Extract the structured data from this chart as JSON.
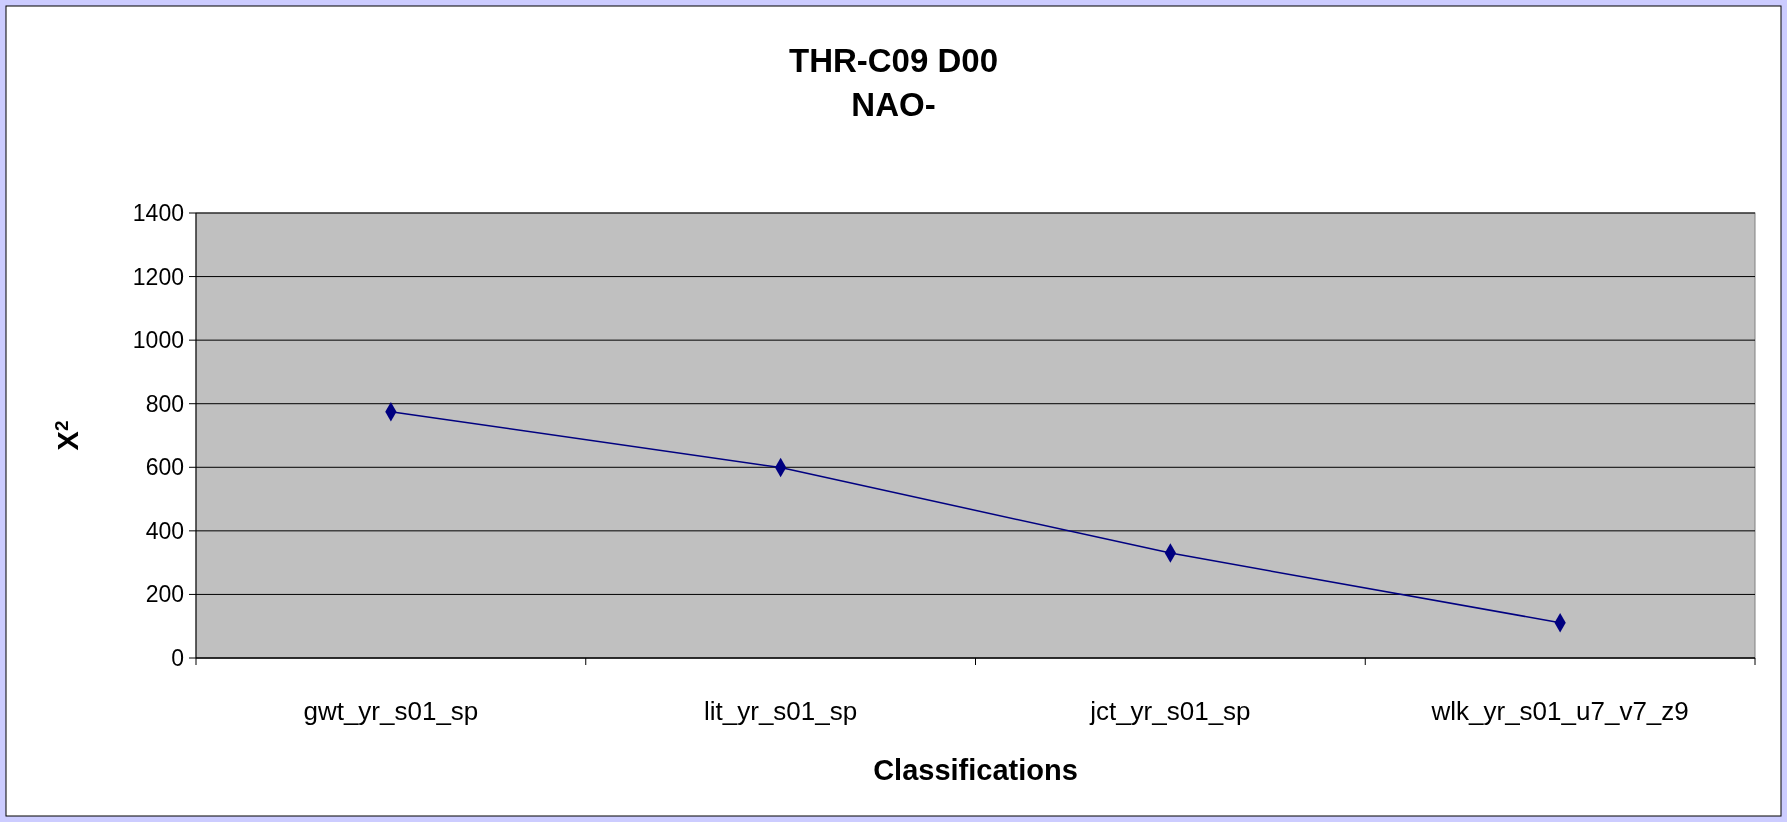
{
  "chart_data": {
    "type": "line",
    "title": "THR-C09 D00\nNAO-",
    "xlabel": "Classifications",
    "ylabel": "X$^{2}$",
    "categories": [
      "gwt_yr_s01_sp",
      "lit_yr_s01_sp",
      "jct_yr_s01_sp",
      "wlk_yr_s01_u7_v7_z9"
    ],
    "series": [
      {
        "color": "#000080",
        "values": [
          775,
          599,
          330,
          111
        ]
      }
    ],
    "ylim": [
      0,
      1400
    ],
    "yticks": [
      0,
      200,
      400,
      600,
      800,
      1000,
      1200,
      1400
    ],
    "grid": "y",
    "marker": "diamond",
    "line_style": "solid"
  }
}
